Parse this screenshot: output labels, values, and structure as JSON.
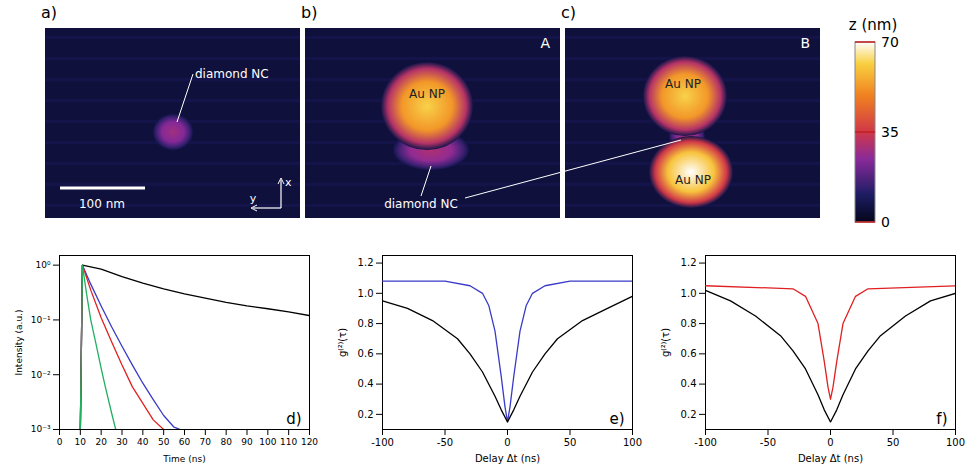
{
  "afm_figure": {
    "images": [
      {
        "panel": "a)",
        "features": [
          {
            "label": "diamond NC",
            "peak_height": 28
          }
        ],
        "scale_bar": "100 nm",
        "axes": {
          "x": "x",
          "y": "y"
        }
      },
      {
        "panel": "b)",
        "corner_label": "A",
        "features": [
          {
            "label": "Au NP",
            "peak_height": 62
          },
          {
            "label": "diamond NC",
            "peak_height": 30
          }
        ]
      },
      {
        "panel": "c)",
        "corner_label": "B",
        "features": [
          {
            "label": "Au NP",
            "peak_height": 62
          },
          {
            "label": null,
            "peak_height": 30
          },
          {
            "label": "Au NP",
            "peak_height": 70
          }
        ]
      }
    ],
    "colorbar": {
      "label": "z (nm)",
      "range": [
        0,
        70
      ],
      "ticks": [
        0,
        35,
        70
      ]
    }
  },
  "chart_data": [
    {
      "type": "line",
      "panel": "d)",
      "x_label": "Time (ns)",
      "y_label": "Intensity (a.u.)",
      "log": "y",
      "xlim": [
        0,
        120
      ],
      "xticks": [
        0,
        10,
        20,
        30,
        40,
        50,
        60,
        70,
        80,
        90,
        100,
        110,
        120
      ],
      "ylim": [
        0.001,
        1.5
      ],
      "yticks": [
        {
          "value": 0.001,
          "label": "10⁻³"
        },
        {
          "value": 0.01,
          "label": "10⁻²"
        },
        {
          "value": 0.1,
          "label": "10⁻¹"
        },
        {
          "value": 1,
          "label": "10⁰"
        }
      ],
      "series": [
        {
          "color": "#000000",
          "x": [
            10,
            11,
            20,
            30,
            40,
            50,
            60,
            70,
            80,
            90,
            100,
            110,
            120
          ],
          "values": [
            0.001,
            1.0,
            0.85,
            0.62,
            0.47,
            0.37,
            0.3,
            0.25,
            0.21,
            0.18,
            0.16,
            0.14,
            0.12
          ]
        },
        {
          "color": "#3a3ac8",
          "x": [
            10,
            11,
            15,
            20,
            25,
            30,
            35,
            40,
            45,
            50,
            55,
            58
          ],
          "values": [
            0.001,
            1.0,
            0.45,
            0.18,
            0.075,
            0.033,
            0.015,
            0.007,
            0.0035,
            0.0018,
            0.0011,
            0.001
          ]
        },
        {
          "color": "#e02020",
          "x": [
            10,
            11,
            15,
            20,
            25,
            30,
            35,
            40,
            45,
            50
          ],
          "values": [
            0.001,
            1.0,
            0.35,
            0.11,
            0.04,
            0.015,
            0.006,
            0.003,
            0.0015,
            0.001
          ]
        },
        {
          "color": "#20b060",
          "x": [
            10,
            11,
            13,
            15,
            18,
            20,
            22,
            25,
            27
          ],
          "values": [
            0.001,
            1.0,
            0.3,
            0.1,
            0.03,
            0.013,
            0.006,
            0.002,
            0.001
          ]
        }
      ]
    },
    {
      "type": "line",
      "panel": "e)",
      "x_label": "Delay Δt (ns)",
      "y_label": "g⁽²⁾(τ)",
      "xlim": [
        -100,
        100
      ],
      "xticks": [
        -100,
        -50,
        0,
        50,
        100
      ],
      "ylim": [
        0.1,
        1.25
      ],
      "yticks": [
        0.2,
        0.4,
        0.6,
        0.8,
        {
          "value": 1,
          "label": "1.0"
        },
        1.2
      ],
      "series": [
        {
          "color": "#3a3ac8",
          "x": [
            -100,
            -50,
            -30,
            -20,
            -15,
            -10,
            -5,
            -2,
            0,
            2,
            5,
            10,
            15,
            20,
            30,
            50,
            100
          ],
          "values": [
            1.08,
            1.08,
            1.05,
            1.0,
            0.92,
            0.75,
            0.45,
            0.25,
            0.15,
            0.25,
            0.45,
            0.75,
            0.92,
            1.0,
            1.05,
            1.08,
            1.08
          ]
        },
        {
          "color": "#000000",
          "x": [
            -100,
            -80,
            -60,
            -40,
            -30,
            -20,
            -10,
            -5,
            0,
            5,
            10,
            20,
            30,
            40,
            60,
            80,
            100
          ],
          "values": [
            0.95,
            0.9,
            0.82,
            0.7,
            0.6,
            0.48,
            0.32,
            0.23,
            0.15,
            0.23,
            0.32,
            0.48,
            0.6,
            0.7,
            0.82,
            0.9,
            0.98
          ]
        }
      ]
    },
    {
      "type": "line",
      "panel": "f)",
      "x_label": "Delay Δt (ns)",
      "y_label": "g⁽²⁾(τ)",
      "xlim": [
        -100,
        100
      ],
      "xticks": [
        -100,
        -50,
        0,
        50,
        100
      ],
      "ylim": [
        0.1,
        1.25
      ],
      "yticks": [
        0.2,
        0.4,
        0.6,
        0.8,
        {
          "value": 1,
          "label": "1.0"
        },
        1.2
      ],
      "series": [
        {
          "color": "#e02020",
          "x": [
            -100,
            -30,
            -20,
            -10,
            -5,
            -2,
            0,
            2,
            5,
            10,
            20,
            30,
            100
          ],
          "values": [
            1.05,
            1.03,
            0.98,
            0.8,
            0.55,
            0.38,
            0.3,
            0.38,
            0.55,
            0.8,
            0.98,
            1.03,
            1.05
          ]
        },
        {
          "color": "#000000",
          "x": [
            -100,
            -80,
            -60,
            -40,
            -30,
            -20,
            -10,
            -5,
            0,
            5,
            10,
            20,
            30,
            40,
            60,
            80,
            100
          ],
          "values": [
            1.02,
            0.95,
            0.85,
            0.72,
            0.62,
            0.5,
            0.33,
            0.23,
            0.15,
            0.23,
            0.33,
            0.5,
            0.62,
            0.72,
            0.85,
            0.95,
            1.0
          ]
        }
      ]
    }
  ]
}
